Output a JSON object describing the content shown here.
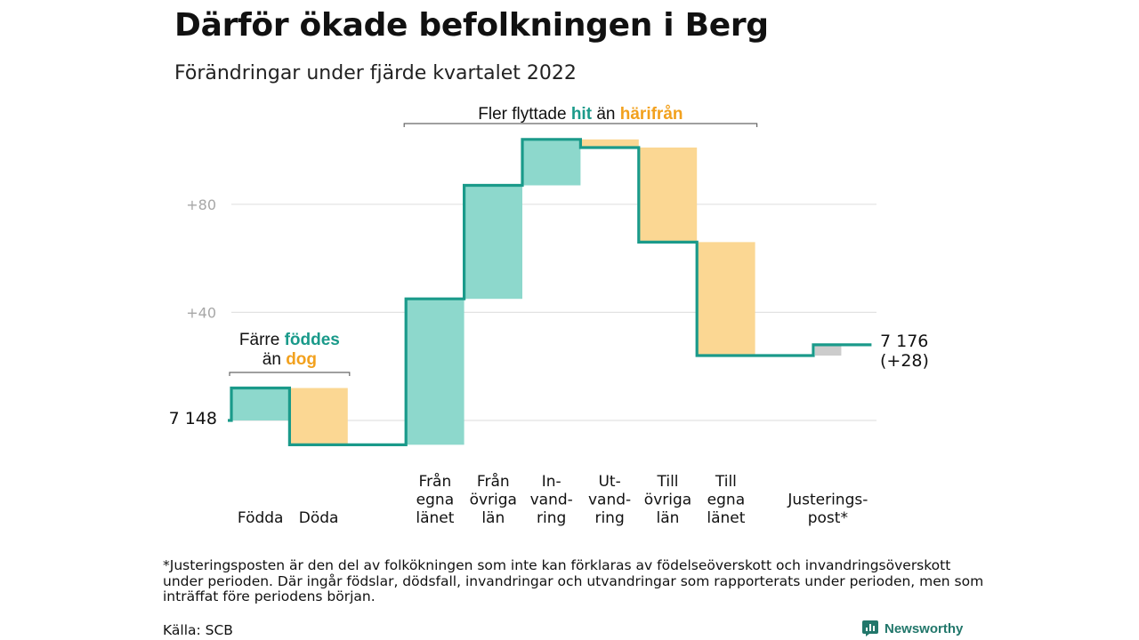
{
  "title": "Därför ökade befolkningen i Berg",
  "subtitle": "Förändringar under fjärde kvartalet 2022",
  "colors": {
    "increase": "#8dd8cc",
    "decrease": "#fbd793",
    "adjustment": "#cccccc",
    "step_line": "#1a9a8a",
    "accent_in": "#1a9a8a",
    "accent_out": "#f2a11e",
    "grid": "#e2e2e2"
  },
  "chart_data": {
    "type": "waterfall",
    "title": "Därför ökade befolkningen i Berg",
    "subtitle": "Förändringar under fjärde kvartalet 2022",
    "baseline_offset": 7148,
    "y_ticks": [
      {
        "value": 40,
        "label": "+40"
      },
      {
        "value": 80,
        "label": "+80"
      }
    ],
    "ylim": [
      -10,
      107
    ],
    "grid": true,
    "start": {
      "value": 0,
      "label": "7 148"
    },
    "end": {
      "value": 28,
      "label_line1": "7 176",
      "label_line2": "(+28)"
    },
    "categories": [
      {
        "label": [
          "Födda"
        ],
        "value": 12,
        "kind": "increase"
      },
      {
        "label": [
          "Döda"
        ],
        "value": -21,
        "kind": "decrease"
      },
      {
        "label": [],
        "value": 0,
        "kind": "gap"
      },
      {
        "label": [
          "Från",
          "egna",
          "länet"
        ],
        "value": 54,
        "kind": "increase"
      },
      {
        "label": [
          "Från",
          "övriga",
          "län"
        ],
        "value": 42,
        "kind": "increase"
      },
      {
        "label": [
          "In-",
          "vand-",
          "ring"
        ],
        "value": 17,
        "kind": "increase"
      },
      {
        "label": [
          "Ut-",
          "vand-",
          "ring"
        ],
        "value": -3,
        "kind": "decrease"
      },
      {
        "label": [
          "Till",
          "övriga",
          "län"
        ],
        "value": -35,
        "kind": "decrease"
      },
      {
        "label": [
          "Till",
          "egna",
          "länet"
        ],
        "value": -42,
        "kind": "decrease"
      },
      {
        "label": [],
        "value": 0,
        "kind": "gap"
      },
      {
        "label": [
          "Justerings-",
          "post*"
        ],
        "value": 4,
        "kind": "adjustment"
      }
    ],
    "annotations": [
      {
        "text_before": "Färre ",
        "text_in": "föddes",
        "line2_before": "än ",
        "text_out": "dog",
        "spans": [
          0,
          1
        ]
      },
      {
        "text_before": "Fler flyttade ",
        "text_in": "hit",
        "text_mid": " än ",
        "text_out": "härifrån",
        "spans": [
          3,
          8
        ]
      }
    ]
  },
  "footnote": "*Justeringsposten är den del av folkökningen som inte kan förklaras av födelseöverskott och invandringsöverskott under perioden. Där ingår födslar, dödsfall, invandringar och utvandringar som rapporterats under perioden, men som inträffat före periodens början.",
  "source": "Källa: SCB",
  "logo": {
    "text": "Newsworthy",
    "icon": "bar-chart-icon"
  }
}
